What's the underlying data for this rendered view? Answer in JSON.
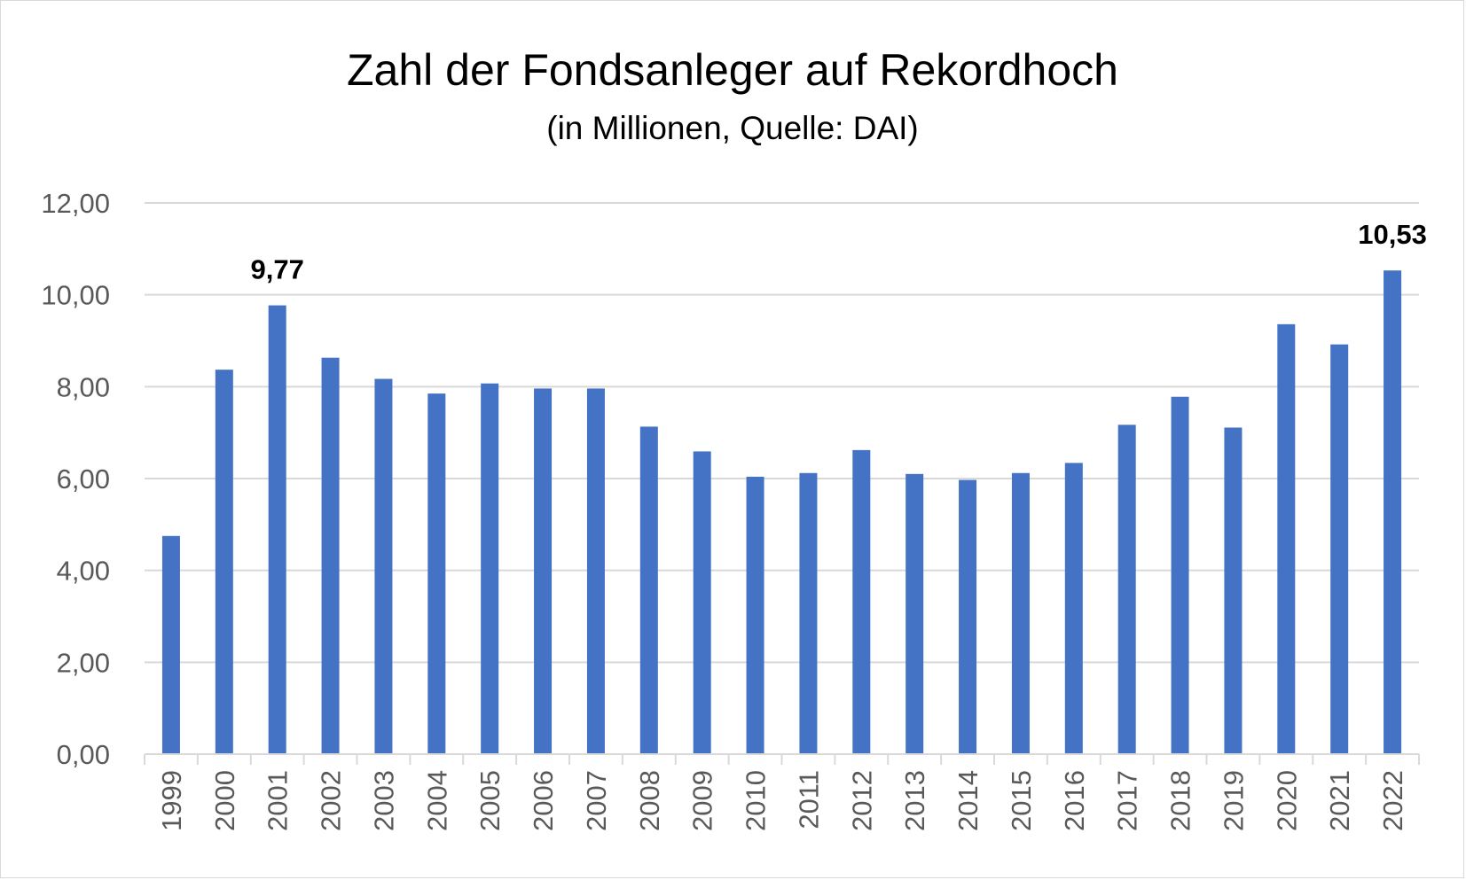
{
  "chart_data": {
    "type": "bar",
    "title": "Zahl der Fondsanleger auf Rekordhoch",
    "subtitle": "(in Millionen, Quelle: DAI)",
    "xlabel": "",
    "ylabel": "",
    "ylim": [
      0,
      12
    ],
    "yticks": [
      "0,00",
      "2,00",
      "4,00",
      "6,00",
      "8,00",
      "10,00",
      "12,00"
    ],
    "grid": true,
    "bar_color": "#4472C4",
    "categories": [
      "1999",
      "2000",
      "2001",
      "2002",
      "2003",
      "2004",
      "2005",
      "2006",
      "2007",
      "2008",
      "2009",
      "2010",
      "2011",
      "2012",
      "2013",
      "2014",
      "2015",
      "2016",
      "2017",
      "2018",
      "2019",
      "2020",
      "2021",
      "2022"
    ],
    "values": [
      4.75,
      8.37,
      9.77,
      8.63,
      8.17,
      7.85,
      8.07,
      7.96,
      7.96,
      7.13,
      6.59,
      6.04,
      6.12,
      6.62,
      6.1,
      5.97,
      6.12,
      6.34,
      7.17,
      7.78,
      7.11,
      9.36,
      8.92,
      10.53
    ],
    "data_labels": [
      {
        "category": "2001",
        "text": "9,77"
      },
      {
        "category": "2022",
        "text": "10,53"
      }
    ]
  }
}
